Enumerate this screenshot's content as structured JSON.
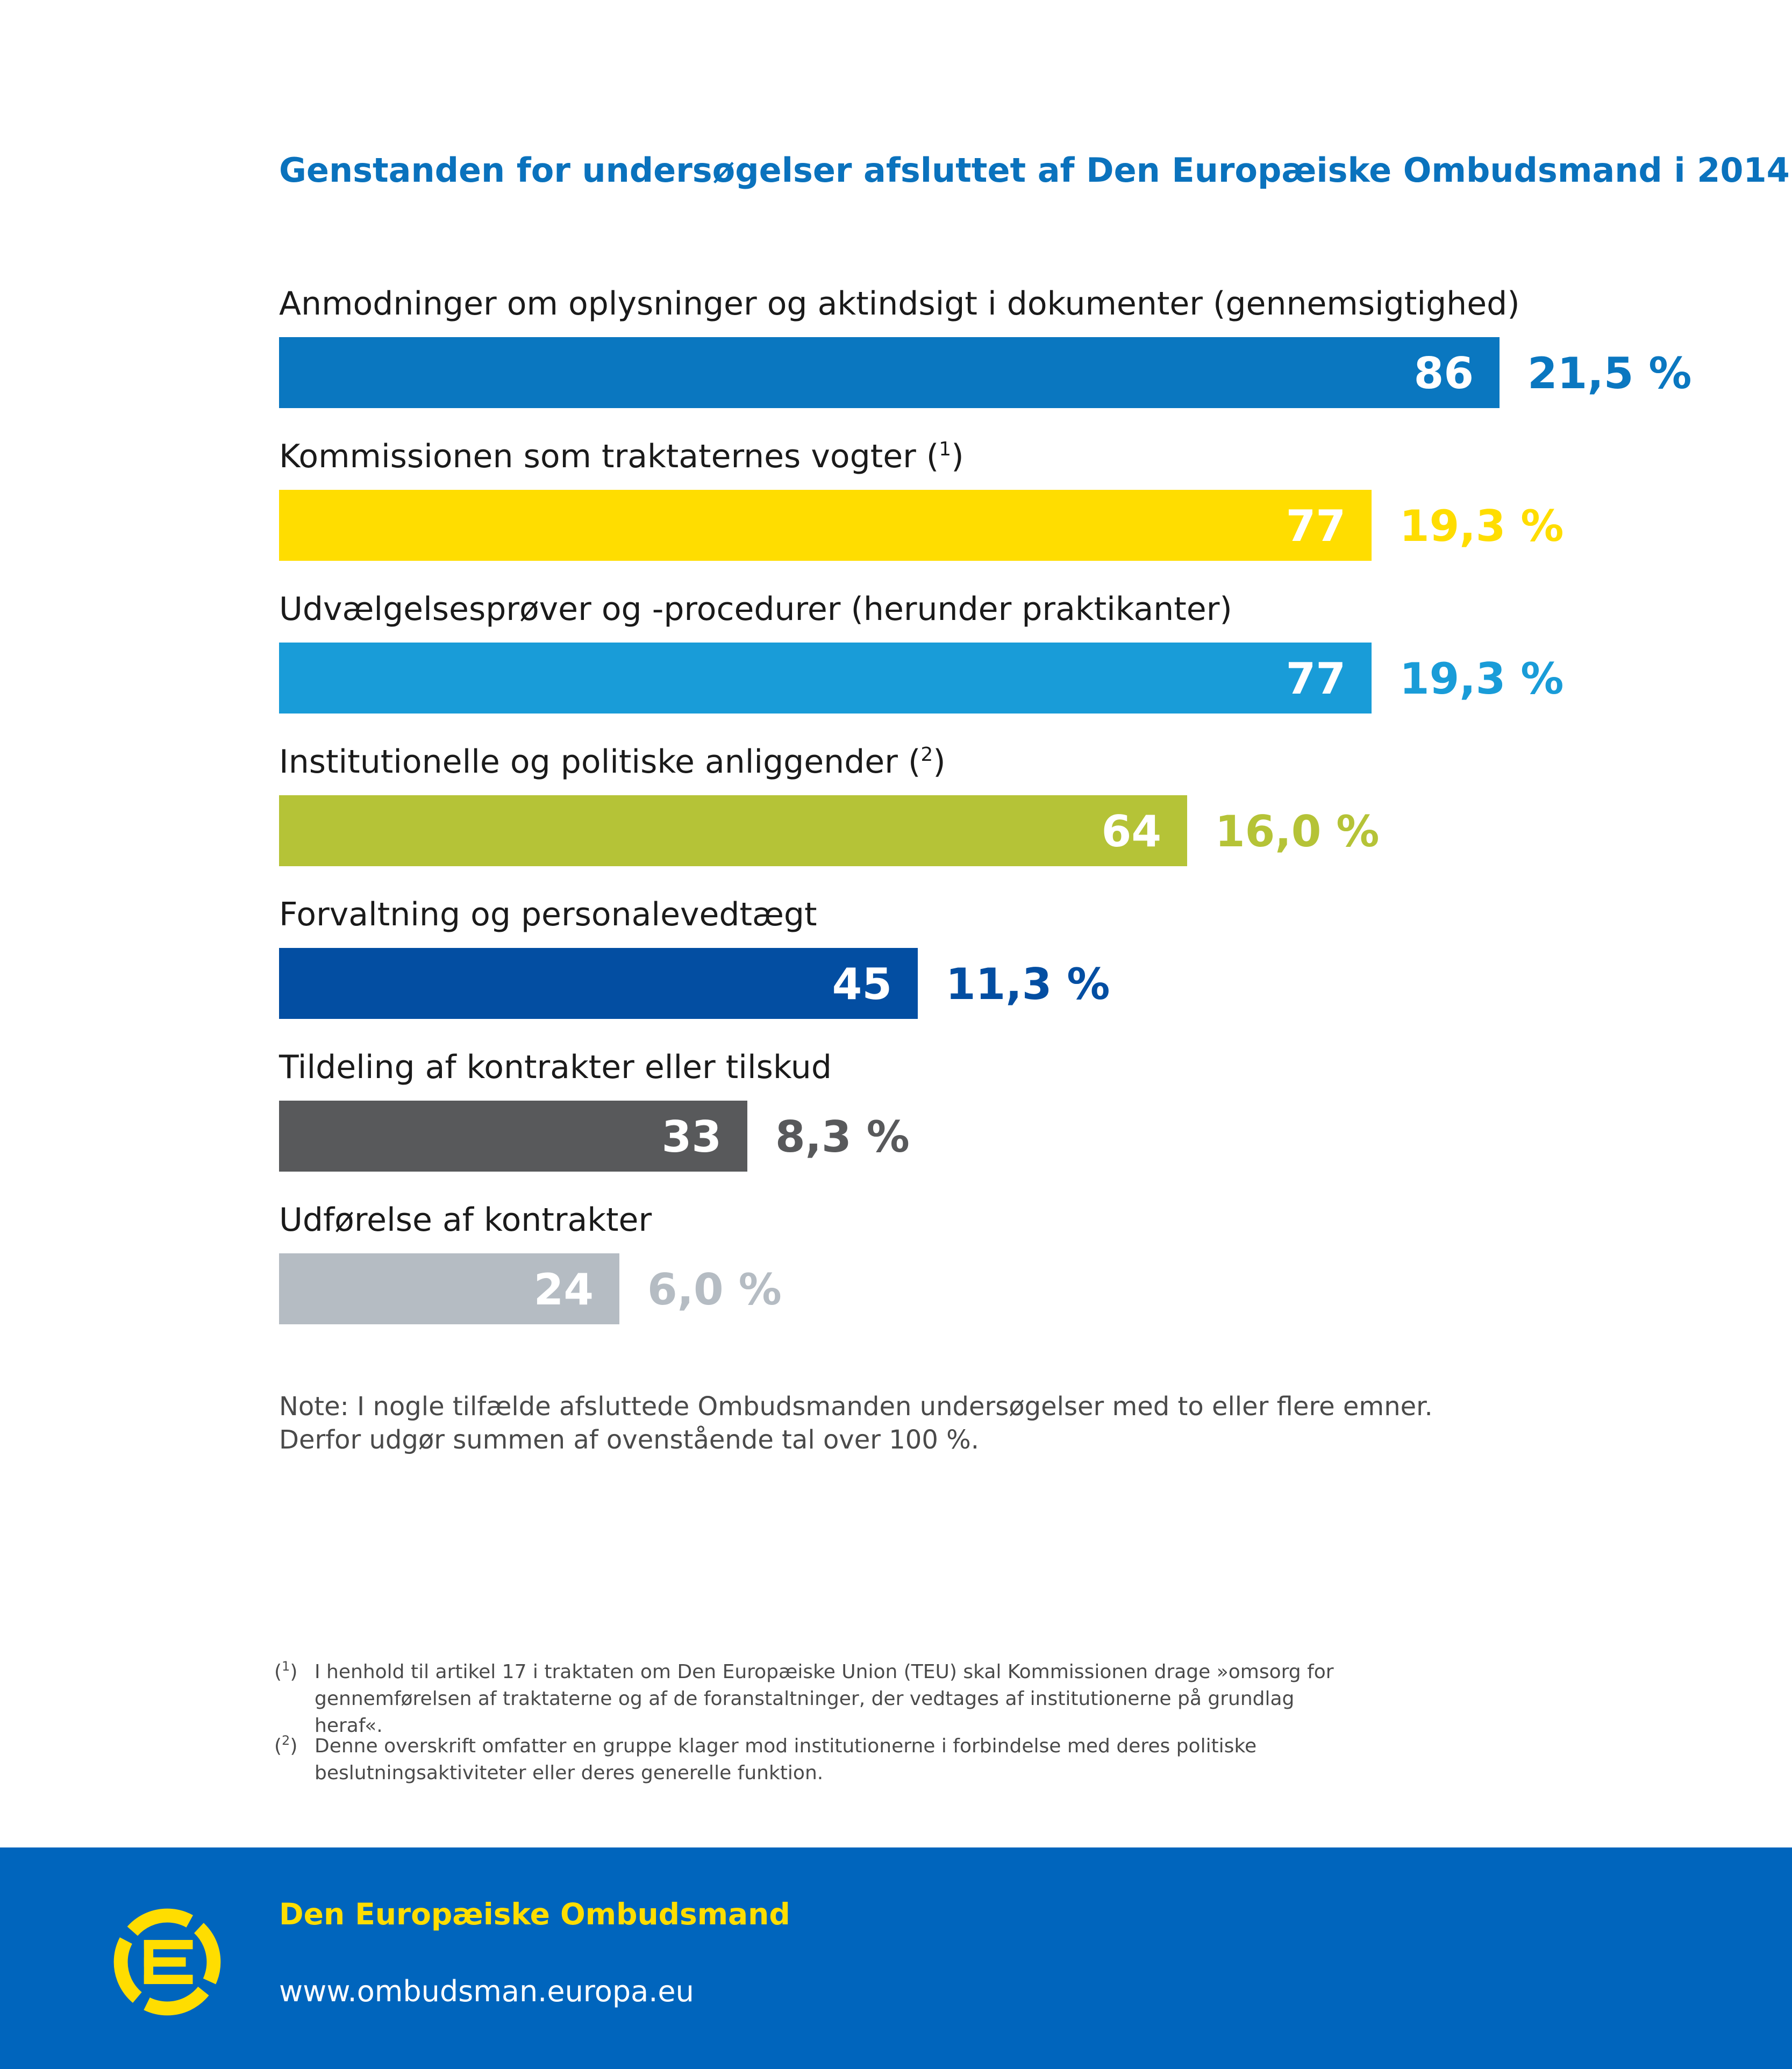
{
  "chart_data": {
    "type": "bar",
    "orientation": "horizontal",
    "title": "Genstanden for undersøgelser afsluttet af Den Europæiske Ombudsmand i 2014",
    "categories": [
      {
        "label": "Anmodninger om oplysninger og aktindsigt i dokumenter (gennemsigtighed)",
        "footnote_ref": ""
      },
      {
        "label": "Kommissionen som traktaternes vogter (",
        "footnote_ref": "1",
        "label_end": ")"
      },
      {
        "label": "Udvælgelsesprøver og -procedurer (herunder praktikanter)",
        "footnote_ref": ""
      },
      {
        "label": "Institutionelle og politiske anliggender (",
        "footnote_ref": "2",
        "label_end": ")"
      },
      {
        "label": "Forvaltning og personalevedtægt",
        "footnote_ref": ""
      },
      {
        "label": "Tildeling af kontrakter eller tilskud",
        "footnote_ref": ""
      },
      {
        "label": "Udførelse af kontrakter",
        "footnote_ref": ""
      }
    ],
    "values": [
      86,
      77,
      77,
      64,
      45,
      33,
      24
    ],
    "value_labels": [
      "86",
      "77",
      "77",
      "64",
      "45",
      "33",
      "24"
    ],
    "percent_labels": [
      "21,5 %",
      "19,3 %",
      "19,3 %",
      "16,0 %",
      "11,3 %",
      "8,3 %",
      "6,0 %"
    ],
    "colors": [
      "#0a77c0",
      "#ffdd00",
      "#199cd8",
      "#b5c337",
      "#034ea2",
      "#58595b",
      "#b5bcc3"
    ],
    "value_text_colors": [
      "#ffffff",
      "#ffffff",
      "#ffffff",
      "#ffffff",
      "#ffffff",
      "#ffffff",
      "#ffffff"
    ],
    "xlim": [
      0,
      86
    ],
    "grid": false,
    "legend": "none"
  },
  "note": {
    "line1": "Note: I nogle tilfælde afsluttede Ombudsmanden undersøgelser med to eller flere emner.",
    "line2": "Derfor udgør summen af ovenstående tal over 100 %."
  },
  "footnotes": [
    {
      "open": "(",
      "num": "1",
      "close": ")",
      "line1": "I henhold til artikel 17 i traktaten om Den Europæiske Union (TEU) skal Kommissionen drage »omsorg for",
      "line2": "gennemførelsen af traktaterne og af de foranstaltninger, der vedtages af institutionerne på grundlag heraf«."
    },
    {
      "open": "(",
      "num": "2",
      "close": ")",
      "line1": "Denne overskrift omfatter en gruppe klager mod institutionerne i forbindelse med deres politiske",
      "line2": "beslutningsaktiviteter eller deres generelle funktion."
    }
  ],
  "footer": {
    "organization": "Den Europæiske Ombudsmand",
    "url": "www.ombudsman.europa.eu",
    "logo_icon": "european-ombudsman-logo-icon",
    "background_color": "#0065bd",
    "accent_color": "#ffdd00"
  }
}
